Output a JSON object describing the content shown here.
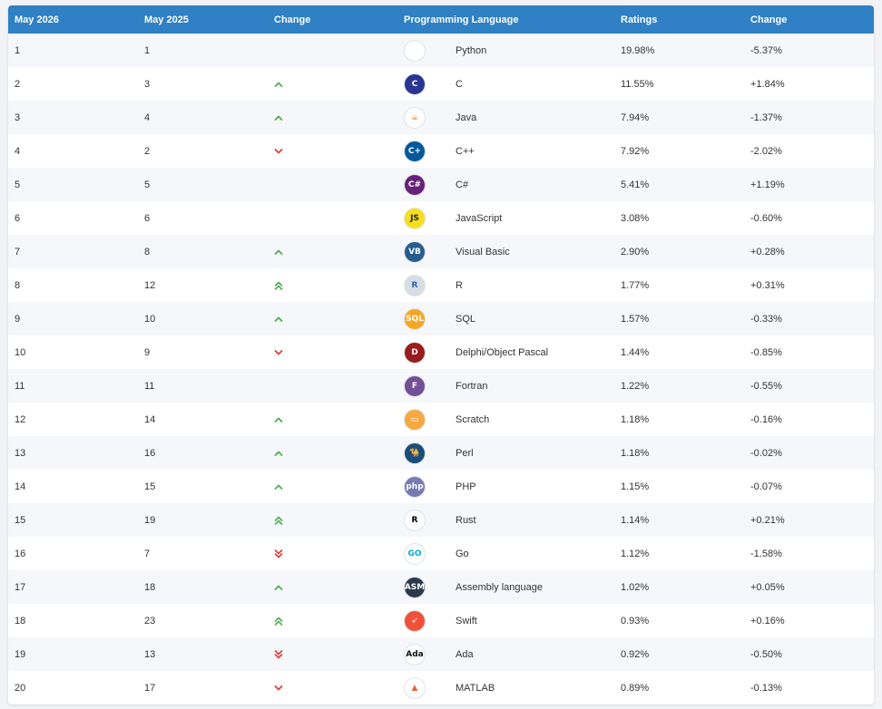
{
  "header": {
    "col1": "May 2026",
    "col2": "May 2025",
    "col3": "Change",
    "col4": "Programming Language",
    "col5": "Ratings",
    "col6": "Change"
  },
  "rows": [
    {
      "rank_now": "1",
      "rank_prev": "1",
      "trend": "none",
      "language": "Python",
      "rating": "19.98%",
      "change": "-5.37%",
      "icon": "python-icon",
      "logo_text": "",
      "logo_bg": "#ffffff",
      "logo_fg": "#3a75b0"
    },
    {
      "rank_now": "2",
      "rank_prev": "3",
      "trend": "up",
      "language": "C",
      "rating": "11.55%",
      "change": "+1.84%",
      "icon": "c-language-icon",
      "logo_text": "C",
      "logo_bg": "#283593",
      "logo_fg": "#ffffff"
    },
    {
      "rank_now": "3",
      "rank_prev": "4",
      "trend": "up",
      "language": "Java",
      "rating": "7.94%",
      "change": "-1.37%",
      "icon": "java-icon",
      "logo_text": "☕",
      "logo_bg": "#ffffff",
      "logo_fg": "#e76f00"
    },
    {
      "rank_now": "4",
      "rank_prev": "2",
      "trend": "down",
      "language": "C++",
      "rating": "7.92%",
      "change": "-2.02%",
      "icon": "cpp-icon",
      "logo_text": "C+",
      "logo_bg": "#00599c",
      "logo_fg": "#ffffff"
    },
    {
      "rank_now": "5",
      "rank_prev": "5",
      "trend": "none",
      "language": "C#",
      "rating": "5.41%",
      "change": "+1.19%",
      "icon": "csharp-icon",
      "logo_text": "C#",
      "logo_bg": "#68217a",
      "logo_fg": "#ffffff"
    },
    {
      "rank_now": "6",
      "rank_prev": "6",
      "trend": "none",
      "language": "JavaScript",
      "rating": "3.08%",
      "change": "-0.60%",
      "icon": "javascript-icon",
      "logo_text": "JS",
      "logo_bg": "#f7df1e",
      "logo_fg": "#222222"
    },
    {
      "rank_now": "7",
      "rank_prev": "8",
      "trend": "up",
      "language": "Visual Basic",
      "rating": "2.90%",
      "change": "+0.28%",
      "icon": "visual-basic-icon",
      "logo_text": "VB",
      "logo_bg": "#255d91",
      "logo_fg": "#ffffff"
    },
    {
      "rank_now": "8",
      "rank_prev": "12",
      "trend": "up2",
      "language": "R",
      "rating": "1.77%",
      "change": "+0.31%",
      "icon": "r-language-icon",
      "logo_text": "R",
      "logo_bg": "#d8dde3",
      "logo_fg": "#1f65b7"
    },
    {
      "rank_now": "9",
      "rank_prev": "10",
      "trend": "up",
      "language": "SQL",
      "rating": "1.57%",
      "change": "-0.33%",
      "icon": "sql-icon",
      "logo_text": "SQL",
      "logo_bg": "#f5a623",
      "logo_fg": "#ffffff"
    },
    {
      "rank_now": "10",
      "rank_prev": "9",
      "trend": "down",
      "language": "Delphi/Object Pascal",
      "rating": "1.44%",
      "change": "-0.85%",
      "icon": "delphi-icon",
      "logo_text": "D",
      "logo_bg": "#9b1c1c",
      "logo_fg": "#ffffff"
    },
    {
      "rank_now": "11",
      "rank_prev": "11",
      "trend": "none",
      "language": "Fortran",
      "rating": "1.22%",
      "change": "-0.55%",
      "icon": "fortran-icon",
      "logo_text": "F",
      "logo_bg": "#734f96",
      "logo_fg": "#ffffff"
    },
    {
      "rank_now": "12",
      "rank_prev": "14",
      "trend": "up",
      "language": "Scratch",
      "rating": "1.18%",
      "change": "-0.16%",
      "icon": "scratch-icon",
      "logo_text": "▭",
      "logo_bg": "#f7a941",
      "logo_fg": "#ffffff"
    },
    {
      "rank_now": "13",
      "rank_prev": "16",
      "trend": "up",
      "language": "Perl",
      "rating": "1.18%",
      "change": "-0.02%",
      "icon": "perl-icon",
      "logo_text": "🐪",
      "logo_bg": "#1a4e7a",
      "logo_fg": "#ffffff"
    },
    {
      "rank_now": "14",
      "rank_prev": "15",
      "trend": "up",
      "language": "PHP",
      "rating": "1.15%",
      "change": "-0.07%",
      "icon": "php-icon",
      "logo_text": "php",
      "logo_bg": "#777bb4",
      "logo_fg": "#ffffff"
    },
    {
      "rank_now": "15",
      "rank_prev": "19",
      "trend": "up2",
      "language": "Rust",
      "rating": "1.14%",
      "change": "+0.21%",
      "icon": "rust-icon",
      "logo_text": "R",
      "logo_bg": "#ffffff",
      "logo_fg": "#000000"
    },
    {
      "rank_now": "16",
      "rank_prev": "7",
      "trend": "down2",
      "language": "Go",
      "rating": "1.12%",
      "change": "-1.58%",
      "icon": "go-icon",
      "logo_text": "GO",
      "logo_bg": "#ffffff",
      "logo_fg": "#00add8"
    },
    {
      "rank_now": "17",
      "rank_prev": "18",
      "trend": "up",
      "language": "Assembly language",
      "rating": "1.02%",
      "change": "+0.05%",
      "icon": "assembly-icon",
      "logo_text": "ASM",
      "logo_bg": "#2b3a4a",
      "logo_fg": "#ffffff"
    },
    {
      "rank_now": "18",
      "rank_prev": "23",
      "trend": "up2",
      "language": "Swift",
      "rating": "0.93%",
      "change": "+0.16%",
      "icon": "swift-icon",
      "logo_text": "➶",
      "logo_bg": "#f05138",
      "logo_fg": "#ffffff"
    },
    {
      "rank_now": "19",
      "rank_prev": "13",
      "trend": "down2",
      "language": "Ada",
      "rating": "0.92%",
      "change": "-0.50%",
      "icon": "ada-icon",
      "logo_text": "Ada",
      "logo_bg": "#ffffff",
      "logo_fg": "#111111"
    },
    {
      "rank_now": "20",
      "rank_prev": "17",
      "trend": "down",
      "language": "MATLAB",
      "rating": "0.89%",
      "change": "-0.13%",
      "icon": "matlab-icon",
      "logo_text": "▲",
      "logo_bg": "#ffffff",
      "logo_fg": "#e16737"
    }
  ],
  "colors": {
    "header_bg": "#2f80c4",
    "trend_up": "#4caf50",
    "trend_down": "#e53935"
  }
}
